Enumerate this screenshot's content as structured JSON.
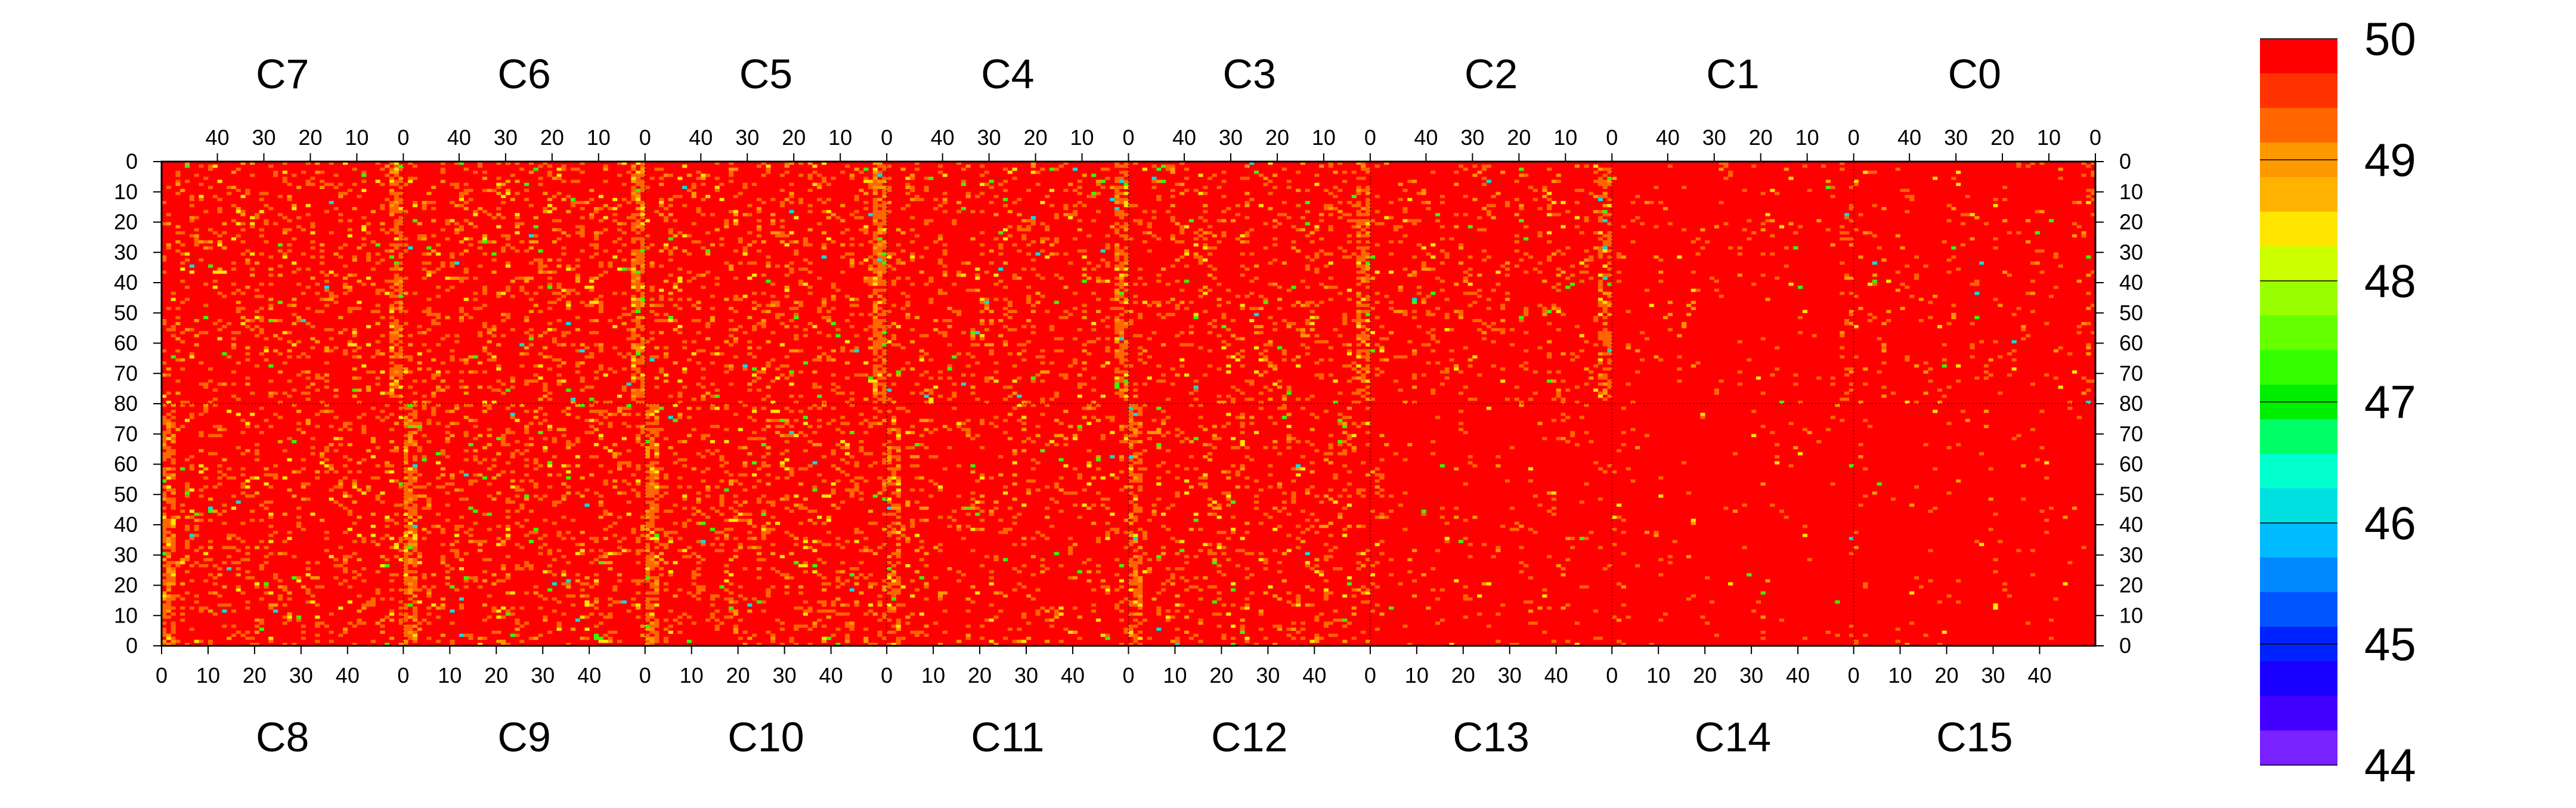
{
  "chart_data": {
    "type": "heatmap",
    "title": "",
    "xlabel": "",
    "ylabel": "",
    "chip_labels_top": [
      "C7",
      "C6",
      "C5",
      "C4",
      "C3",
      "C2",
      "C1",
      "C0"
    ],
    "chip_labels_bottom": [
      "C8",
      "C9",
      "C10",
      "C11",
      "C12",
      "C13",
      "C14",
      "C15"
    ],
    "top_x_ticks": [
      "40",
      "30",
      "20",
      "10",
      "0"
    ],
    "top_x_tick_values": [
      40,
      30,
      20,
      10,
      0
    ],
    "bottom_x_ticks": [
      "0",
      "10",
      "20",
      "30",
      "40"
    ],
    "bottom_x_tick_values": [
      0,
      10,
      20,
      30,
      40
    ],
    "top_y_ticks": [
      "0",
      "10",
      "20",
      "30",
      "40",
      "50",
      "60",
      "70",
      "80"
    ],
    "top_y_tick_values": [
      0,
      10,
      20,
      30,
      40,
      50,
      60,
      70,
      80
    ],
    "bottom_y_ticks": [
      "70",
      "60",
      "50",
      "40",
      "30",
      "20",
      "10",
      "0"
    ],
    "bottom_y_tick_values": [
      70,
      60,
      50,
      40,
      30,
      20,
      10,
      0
    ],
    "columns_per_chip": 52,
    "rows_per_half": 80,
    "zlim": [
      44,
      50
    ],
    "colorbar_ticks": [
      "50",
      "49",
      "48",
      "47",
      "46",
      "45",
      "44"
    ],
    "colorbar_tick_values": [
      50,
      49,
      48,
      47,
      46,
      45,
      44
    ],
    "colorbar_colors": [
      "#ff0000",
      "#ff3300",
      "#ff6600",
      "#ff9900",
      "#ffb300",
      "#ffe600",
      "#ccff00",
      "#99ff00",
      "#66ff00",
      "#33ff00",
      "#00ee00",
      "#00ff66",
      "#00ffcc",
      "#00e0e0",
      "#00bbff",
      "#0088ff",
      "#0055ff",
      "#0022ff",
      "#1a00ff",
      "#4400ff",
      "#7722ff"
    ],
    "dominant_value": 50,
    "chip_noise_density": [
      0.14,
      0.16,
      0.15,
      0.13,
      0.13,
      0.1,
      0.04,
      0.05,
      0.14,
      0.16,
      0.15,
      0.11,
      0.12,
      0.04,
      0.02,
      0.02
    ]
  }
}
